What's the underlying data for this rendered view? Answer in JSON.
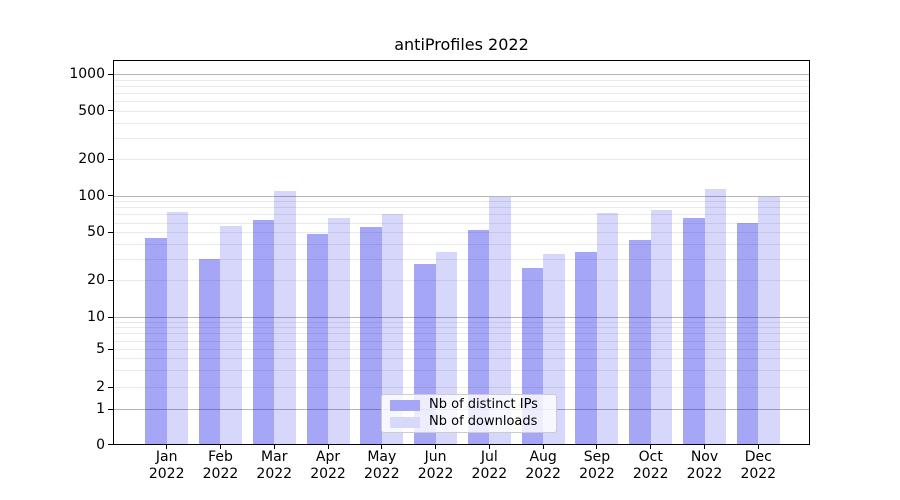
{
  "chart_data": {
    "type": "bar",
    "title": "antiProfiles 2022",
    "categories": [
      "Jan",
      "Feb",
      "Mar",
      "Apr",
      "May",
      "Jun",
      "Jul",
      "Aug",
      "Sep",
      "Oct",
      "Nov",
      "Dec"
    ],
    "category_year_label": "2022",
    "series": [
      {
        "name": "Nb of distinct IPs",
        "color": "#a6a6f6",
        "fill": "rgba(20,20,235,0.38)",
        "values": [
          44,
          30,
          62,
          48,
          55,
          27,
          52,
          25,
          34,
          43,
          65,
          59
        ]
      },
      {
        "name": "Nb of downloads",
        "color": "#d8d8fb",
        "fill": "rgba(20,20,235,0.17)",
        "values": [
          73,
          56,
          109,
          65,
          70,
          34,
          96,
          33,
          72,
          76,
          112,
          96
        ]
      }
    ],
    "yscale": "log-like (0,1,2,5,10,20,50,100,200,500,1000)",
    "y_ticks": [
      1000,
      500,
      200,
      100,
      50,
      20,
      10,
      5,
      2,
      1,
      0
    ],
    "ylim": [
      0,
      1000
    ],
    "grid": true,
    "legend_position": "lower center inside plot"
  },
  "colors": {
    "grid_major": "#b5b5b5",
    "grid_minor": "#eaeaea",
    "axis": "#000000",
    "legend_border": "#cccccc"
  }
}
